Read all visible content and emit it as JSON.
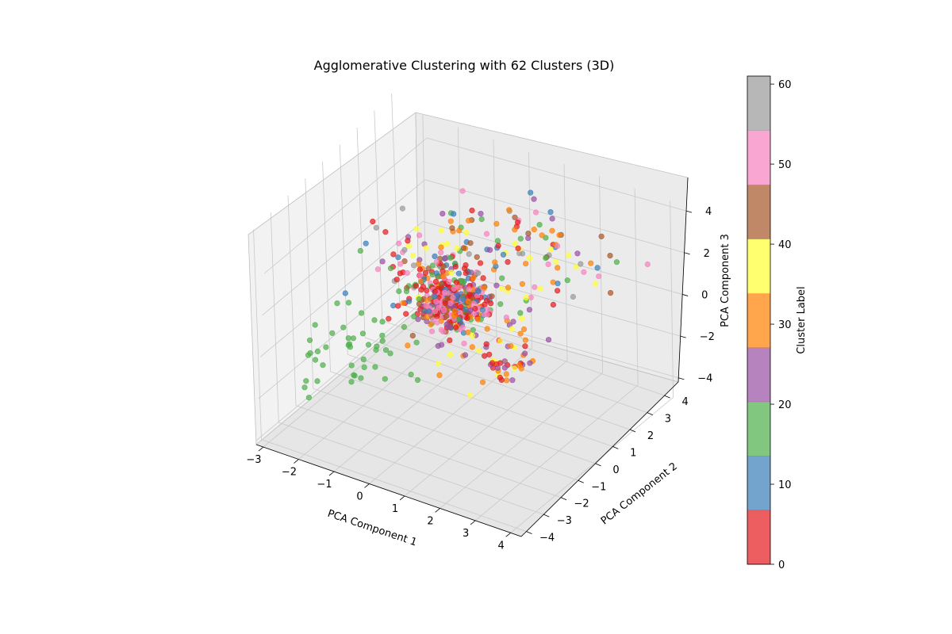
{
  "chart_data": {
    "type": "scatter",
    "projection": "3d",
    "title": "Agglomerative Clustering with 62 Clusters (3D)",
    "xlabel": "PCA Component 1",
    "ylabel": "PCA Component 2",
    "zlabel": "PCA Component 3",
    "xlim": [
      -3.2,
      4.3
    ],
    "ylim": [
      -4.3,
      4.8
    ],
    "zlim": [
      -4.2,
      5.6
    ],
    "xticks": [
      "−3",
      "−2",
      "−1",
      "0",
      "1",
      "2",
      "3",
      "4"
    ],
    "yticks": [
      "−4",
      "−3",
      "−2",
      "−1",
      "0",
      "1",
      "2",
      "3",
      "4"
    ],
    "zticks": [
      "−4",
      "−2",
      "0",
      "2",
      "4"
    ],
    "grid": true,
    "colorbar": {
      "label": "Cluster Label",
      "min": 0,
      "max": 61,
      "ticks": [
        "0",
        "10",
        "20",
        "30",
        "40",
        "50",
        "60"
      ],
      "cmap": "Set1",
      "colors": [
        "#e41a1c",
        "#377eb8",
        "#4daf4a",
        "#984ea3",
        "#ff7f00",
        "#ffff33",
        "#a65628",
        "#f781bf",
        "#999999"
      ]
    },
    "n_points": 700,
    "point_alpha": 0.7
  }
}
